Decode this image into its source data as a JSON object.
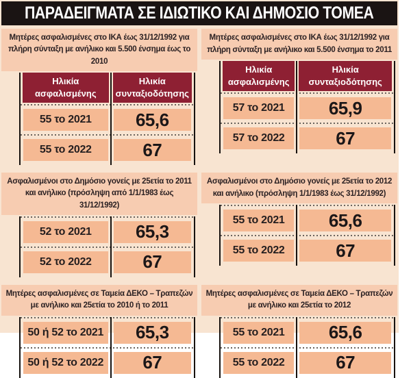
{
  "title": "ΠΑΡΑΔΕΙΓΜΑΤΑ ΣΕ ΙΔΙΩΤΙΚΟ ΚΑΙ ΔΗΜΟΣΙΟ ΤΟΜΕΑ",
  "columns": {
    "insured_age": "Ηλικία ασφαλισμένης",
    "retirement_age": "Ηλικία συνταξιοδότησης"
  },
  "sections": [
    {
      "title": "Μητέρες ασφαλισμένες στο ΙΚΑ έως 31/12/1992 για πλήρη σύνταξη με ανήλικο και 5.500 ένσημα έως το 2010",
      "rows": [
        {
          "age": "55 το 2021",
          "retirement": "65,6"
        },
        {
          "age": "55 το 2022",
          "retirement": "67"
        }
      ]
    },
    {
      "title": "Μητέρες ασφαλισμένες στο ΙΚΑ έως 31/12/1992 για πλήρη σύνταξη με ανήλικο και 5.500 ένσημα το 2011",
      "rows": [
        {
          "age": "57 το 2021",
          "retirement": "65,9"
        },
        {
          "age": "57 το 2022",
          "retirement": "67"
        }
      ]
    },
    {
      "title": "Ασφαλισμένοι στο Δημόσιο γονείς με 25ετία το 2011 και ανήλικο (πρόσληψη από 1/1/1983 έως 31/12/1992)",
      "rows": [
        {
          "age": "52 το 2021",
          "retirement": "65,3"
        },
        {
          "age": "52 το 2022",
          "retirement": "67"
        }
      ]
    },
    {
      "title": "Ασφαλισμένοι στο Δημόσιο γονείς με 25ετία το 2012 και ανήλικο (πρόσληψη 1/1/1983 έως 31/12/1992)",
      "rows": [
        {
          "age": "55 το 2021",
          "retirement": "65,6"
        },
        {
          "age": "55 το 2022",
          "retirement": "67"
        }
      ]
    },
    {
      "title": "Μητέρες ασφαλισμένες σε Ταμεία ΔΕΚΟ – Τραπεζών με ανήλικο και 25ετία το 2010 ή το 2011",
      "rows": [
        {
          "age": "50 ή 52 το 2021",
          "retirement": "65,3"
        },
        {
          "age": "50 ή 52 το 2022",
          "retirement": "67"
        }
      ]
    },
    {
      "title": "Μητέρες ασφαλισμένες σε Ταμεία ΔΕΚΟ – Τραπεζών με ανήλικο και 25ετία το 2012",
      "rows": [
        {
          "age": "55 το 2021",
          "retirement": "65,6"
        },
        {
          "age": "55 το 2022",
          "retirement": "67"
        }
      ]
    }
  ],
  "colors": {
    "headline_bar": "#1a1413",
    "background": "#f8e4d1",
    "section_strip": "#f7ccb1",
    "data_cell": "#f5b993",
    "header_maroon": "#8e2033",
    "rule_black": "#17120f"
  },
  "chart_data": [
    {
      "type": "table",
      "title": "Μητέρες ασφαλισμένες στο ΙΚΑ έως 31/12/1992 για πλήρη σύνταξη με ανήλικο και 5.500 ένσημα έως το 2010",
      "columns": [
        "Ηλικία ασφαλισμένης",
        "Ηλικία συνταξιοδότησης"
      ],
      "rows": [
        [
          "55 το 2021",
          "65,6"
        ],
        [
          "55 το 2022",
          "67"
        ]
      ]
    },
    {
      "type": "table",
      "title": "Μητέρες ασφαλισμένες στο ΙΚΑ έως 31/12/1992 για πλήρη σύνταξη με ανήλικο και 5.500 ένσημα το 2011",
      "columns": [
        "Ηλικία ασφαλισμένης",
        "Ηλικία συνταξιοδότησης"
      ],
      "rows": [
        [
          "57 το 2021",
          "65,9"
        ],
        [
          "57 το 2022",
          "67"
        ]
      ]
    },
    {
      "type": "table",
      "title": "Ασφαλισμένοι στο Δημόσιο γονείς με 25ετία το 2011 και ανήλικο (πρόσληψη από 1/1/1983 έως 31/12/1992)",
      "columns": [
        "Ηλικία ασφαλισμένης",
        "Ηλικία συνταξιοδότησης"
      ],
      "rows": [
        [
          "52 το 2021",
          "65,3"
        ],
        [
          "52 το 2022",
          "67"
        ]
      ]
    },
    {
      "type": "table",
      "title": "Ασφαλισμένοι στο Δημόσιο γονείς με 25ετία το 2012 και ανήλικο (πρόσληψη 1/1/1983 έως 31/12/1992)",
      "columns": [
        "Ηλικία ασφαλισμένης",
        "Ηλικία συνταξιοδότησης"
      ],
      "rows": [
        [
          "55 το 2021",
          "65,6"
        ],
        [
          "55 το 2022",
          "67"
        ]
      ]
    },
    {
      "type": "table",
      "title": "Μητέρες ασφαλισμένες σε Ταμεία ΔΕΚΟ – Τραπεζών με ανήλικο και 25ετία το 2010 ή το 2011",
      "columns": [
        "Ηλικία ασφαλισμένης",
        "Ηλικία συνταξιοδότησης"
      ],
      "rows": [
        [
          "50 ή 52 το 2021",
          "65,3"
        ],
        [
          "50 ή 52 το 2022",
          "67"
        ]
      ]
    },
    {
      "type": "table",
      "title": "Μητέρες ασφαλισμένες σε Ταμεία ΔΕΚΟ – Τραπεζών με ανήλικο και 25ετία το 2012",
      "columns": [
        "Ηλικία ασφαλισμένης",
        "Ηλικία συνταξιοδότησης"
      ],
      "rows": [
        [
          "55 το 2021",
          "65,6"
        ],
        [
          "55 το 2022",
          "67"
        ]
      ]
    }
  ]
}
